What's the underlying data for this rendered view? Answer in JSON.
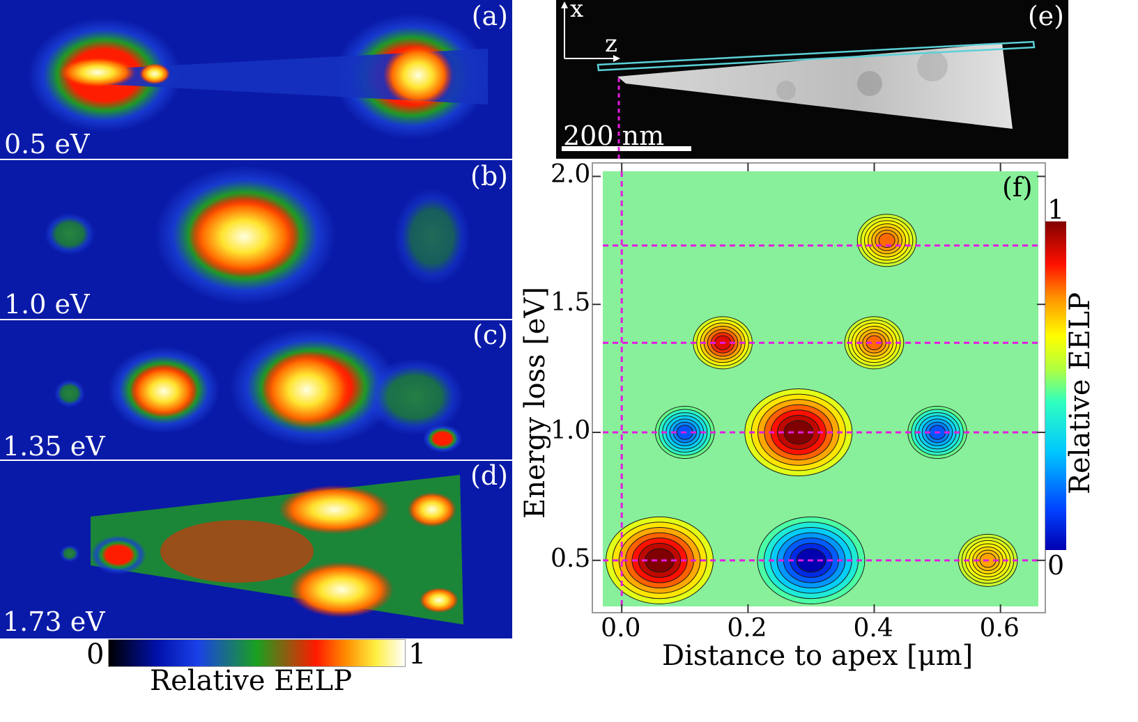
{
  "panels_left": [
    {
      "label": "(a)",
      "energy": "0.5 eV"
    },
    {
      "label": "(b)",
      "energy": "1.0 eV"
    },
    {
      "label": "(c)",
      "energy": "1.35 eV"
    },
    {
      "label": "(d)",
      "energy": "1.73 eV"
    }
  ],
  "colorbar_left": {
    "min": "0",
    "max": "1",
    "label": "Relative EELP"
  },
  "panel_e": {
    "label": "(e)",
    "axis_x": "x",
    "axis_z": "z",
    "scalebar": "200 nm"
  },
  "chart_data": {
    "type": "heatmap",
    "title": "",
    "panel_label": "(f)",
    "xlabel": "Distance to apex [μm]",
    "ylabel": "Energy loss [eV]",
    "xlim": [
      -0.03,
      0.66
    ],
    "ylim": [
      0.32,
      2.02
    ],
    "xticks": [
      "0.0",
      "0.2",
      "0.4",
      "0.6"
    ],
    "yticks": [
      "0.5",
      "1.0",
      "1.5",
      "2.0"
    ],
    "xtick_values": [
      0.0,
      0.2,
      0.4,
      0.6
    ],
    "ytick_values": [
      0.5,
      1.0,
      1.5,
      2.0
    ],
    "guide_energies": [
      0.5,
      1.0,
      1.35,
      1.73
    ],
    "guide_distance": 0.0,
    "features": [
      {
        "x": 0.06,
        "y": 0.5,
        "level": 1.0
      },
      {
        "x": 0.3,
        "y": 0.5,
        "level": 0.0
      },
      {
        "x": 0.58,
        "y": 0.5,
        "level": 0.75
      },
      {
        "x": 0.28,
        "y": 1.0,
        "level": 1.0
      },
      {
        "x": 0.1,
        "y": 1.0,
        "level": 0.15
      },
      {
        "x": 0.5,
        "y": 1.0,
        "level": 0.15
      },
      {
        "x": 0.16,
        "y": 1.35,
        "level": 0.9
      },
      {
        "x": 0.4,
        "y": 1.35,
        "level": 0.8
      },
      {
        "x": 0.42,
        "y": 1.75,
        "level": 0.8
      }
    ],
    "colorbar": {
      "min": "0",
      "max": "1",
      "label": "Relative EELP"
    }
  },
  "colors": {
    "guide": "#e21be2",
    "frame": "#5bd1d8"
  }
}
